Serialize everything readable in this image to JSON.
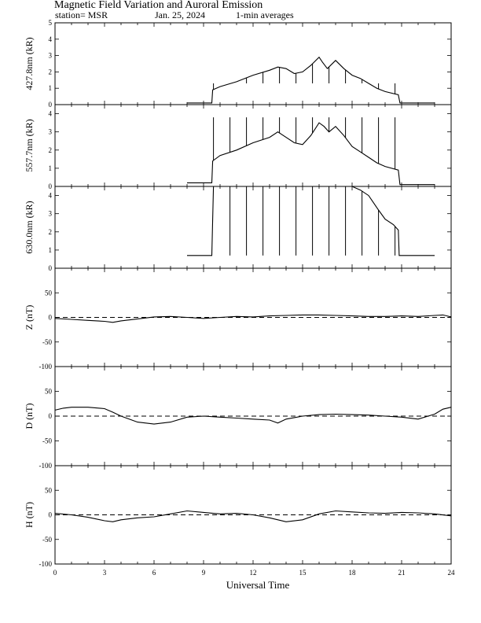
{
  "title": "Magnetic Field Variation and Auroral Emission",
  "subtitle": {
    "station": "station= MSR",
    "date": "Jan. 25, 2024",
    "averaging": "1-min averages"
  },
  "xlabel": "Universal Time",
  "xlim": [
    0,
    24
  ],
  "xticks": [
    0,
    3,
    6,
    9,
    12,
    15,
    18,
    21,
    24
  ],
  "chart_data": [
    {
      "type": "line",
      "ylabel": "427.8nm (kR)",
      "ylim": [
        0,
        5
      ],
      "yticks": [
        0,
        1,
        2,
        3,
        4,
        5
      ],
      "x": [
        8.0,
        9.5,
        9.55,
        10.0,
        11.0,
        12.0,
        13.0,
        13.5,
        14.0,
        14.5,
        15.0,
        15.5,
        16.0,
        16.2,
        16.5,
        17.0,
        17.5,
        18.0,
        18.5,
        19.0,
        19.5,
        20.0,
        20.8,
        20.9,
        23.0
      ],
      "y": [
        0.1,
        0.1,
        0.9,
        1.1,
        1.4,
        1.8,
        2.1,
        2.3,
        2.2,
        1.9,
        2.0,
        2.4,
        2.9,
        2.6,
        2.2,
        2.7,
        2.2,
        1.8,
        1.6,
        1.3,
        1.0,
        0.8,
        0.6,
        0.1,
        0.1
      ],
      "spikes": [
        9.6,
        10.6,
        11.6,
        12.6,
        13.6,
        14.6,
        15.6,
        16.6,
        17.6,
        18.6,
        19.6,
        20.6
      ],
      "spike_top": 1.3
    },
    {
      "type": "line",
      "ylabel": "557.7nm (kR)",
      "ylim": [
        0,
        4.5
      ],
      "yticks": [
        0,
        1,
        2,
        3,
        4
      ],
      "x": [
        8.0,
        9.5,
        9.55,
        10.0,
        11.0,
        12.0,
        13.0,
        13.5,
        14.0,
        14.5,
        15.0,
        15.5,
        16.0,
        16.3,
        16.6,
        17.0,
        17.5,
        18.0,
        18.5,
        19.0,
        19.5,
        20.0,
        20.8,
        20.9,
        23.0
      ],
      "y": [
        0.2,
        0.2,
        1.4,
        1.7,
        2.0,
        2.4,
        2.7,
        3.0,
        2.7,
        2.4,
        2.3,
        2.8,
        3.5,
        3.3,
        3.0,
        3.3,
        2.8,
        2.2,
        1.9,
        1.6,
        1.3,
        1.1,
        0.9,
        0.1,
        0.1
      ],
      "spikes": [
        9.6,
        10.6,
        11.6,
        12.6,
        13.6,
        14.6,
        15.6,
        16.6,
        17.6,
        18.6,
        19.6,
        20.6
      ],
      "spike_top": 3.8
    },
    {
      "type": "line",
      "ylabel": "630.0nm (kR)",
      "ylim": [
        0,
        4.5
      ],
      "yticks": [
        0,
        1,
        2,
        3,
        4
      ],
      "x": [
        8.0,
        9.5,
        9.6,
        10.0,
        12.0,
        15.0,
        18.0,
        18.5,
        19.0,
        19.3,
        19.6,
        20.0,
        20.5,
        20.8,
        20.85,
        23.0
      ],
      "y": [
        0.7,
        0.7,
        4.5,
        4.5,
        4.5,
        4.5,
        4.5,
        4.3,
        4.0,
        3.6,
        3.2,
        2.7,
        2.4,
        2.1,
        0.7,
        0.7
      ],
      "spikes": [
        10.6,
        11.6,
        12.6,
        13.6,
        14.6,
        15.6,
        16.6,
        17.6,
        18.6,
        19.6,
        20.6
      ],
      "spike_top": 0.7
    },
    {
      "type": "line",
      "ylabel": "Z (nT)",
      "ylim": [
        -100,
        100
      ],
      "yticks": [
        -100,
        -50,
        0,
        50
      ],
      "x": [
        0,
        1,
        2,
        3,
        3.5,
        4,
        5,
        6,
        7,
        8,
        9,
        10,
        11,
        12,
        13,
        14,
        15,
        16,
        17,
        18,
        19,
        20,
        21,
        22,
        23,
        23.5,
        24
      ],
      "y": [
        -2,
        -4,
        -6,
        -8,
        -10,
        -7,
        -3,
        1,
        2,
        0,
        -2,
        0,
        2,
        1,
        3,
        4,
        5,
        5,
        4,
        3,
        2,
        2,
        3,
        2,
        4,
        5,
        1
      ],
      "baseline": 0
    },
    {
      "type": "line",
      "ylabel": "D (nT)",
      "ylim": [
        -100,
        100
      ],
      "yticks": [
        -100,
        -50,
        0,
        50
      ],
      "x": [
        0,
        0.5,
        1,
        2,
        3,
        3.5,
        4,
        5,
        6,
        7,
        8,
        9,
        10,
        11,
        12,
        13,
        13.5,
        14,
        15,
        16,
        17,
        18,
        19,
        20,
        21,
        22,
        23,
        23.5,
        24
      ],
      "y": [
        12,
        16,
        18,
        18,
        15,
        8,
        0,
        -12,
        -16,
        -12,
        -2,
        0,
        -2,
        -4,
        -6,
        -8,
        -14,
        -6,
        0,
        3,
        4,
        3,
        2,
        0,
        -2,
        -6,
        4,
        14,
        18
      ],
      "baseline": 0
    },
    {
      "type": "line",
      "ylabel": "H (nT)",
      "ylim": [
        -100,
        100
      ],
      "yticks": [
        -100,
        -50,
        0,
        50
      ],
      "x": [
        0,
        1,
        2,
        3,
        3.5,
        4,
        5,
        6,
        7,
        8,
        9,
        10,
        11,
        12,
        13,
        14,
        15,
        16,
        17,
        18,
        19,
        20,
        21,
        22,
        23,
        24
      ],
      "y": [
        3,
        0,
        -5,
        -12,
        -14,
        -10,
        -6,
        -4,
        2,
        8,
        5,
        2,
        3,
        0,
        -6,
        -14,
        -10,
        2,
        8,
        6,
        4,
        3,
        5,
        4,
        2,
        -2
      ],
      "baseline": 0
    }
  ]
}
